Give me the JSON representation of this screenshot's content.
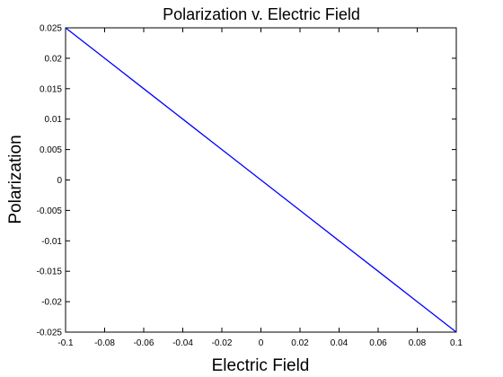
{
  "chart_data": {
    "type": "line",
    "title": "Polarization v. Electric Field",
    "xlabel": "Electric Field",
    "ylabel": "Polarization",
    "xlim": [
      -0.1,
      0.1
    ],
    "ylim": [
      -0.025,
      0.025
    ],
    "xticks": [
      -0.1,
      -0.08,
      -0.06,
      -0.04,
      -0.02,
      0,
      0.02,
      0.04,
      0.06,
      0.08,
      0.1
    ],
    "xtick_labels": [
      "-0.1",
      "-0.08",
      "-0.06",
      "-0.04",
      "-0.02",
      "0",
      "0.02",
      "0.04",
      "0.06",
      "0.08",
      "0.1"
    ],
    "yticks": [
      -0.025,
      -0.02,
      -0.015,
      -0.01,
      -0.005,
      0,
      0.005,
      0.01,
      0.015,
      0.02,
      0.025
    ],
    "ytick_labels": [
      "-0.025",
      "-0.02",
      "-0.015",
      "-0.01",
      "-0.005",
      "0",
      "0.005",
      "0.01",
      "0.015",
      "0.02",
      "0.025"
    ],
    "grid": false,
    "series": [
      {
        "color": "#0000ff",
        "x": [
          -0.1,
          -0.08,
          -0.06,
          -0.04,
          -0.02,
          0,
          0.02,
          0.04,
          0.06,
          0.08,
          0.1
        ],
        "y": [
          0.025,
          0.02,
          0.015,
          0.01,
          0.005,
          0,
          -0.005,
          -0.01,
          -0.015,
          -0.02,
          -0.025
        ]
      }
    ]
  }
}
